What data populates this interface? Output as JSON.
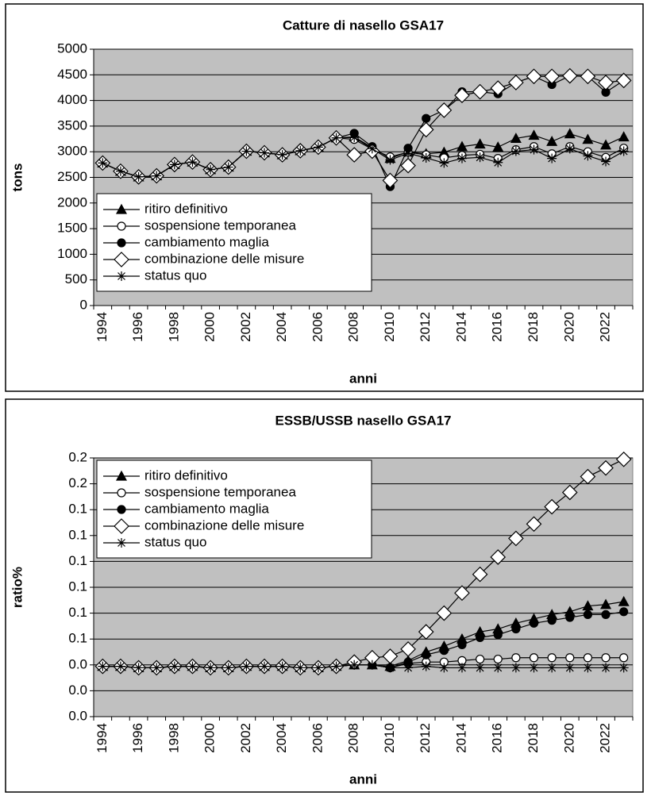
{
  "chart_data": [
    {
      "type": "line",
      "title": "Catture di nasello GSA17",
      "x_label": "anni",
      "y_label": "tons",
      "categories": [
        "1994",
        null,
        "1996",
        null,
        "1998",
        null,
        "2000",
        null,
        "2002",
        null,
        "2004",
        null,
        "2006",
        null,
        "2008",
        null,
        "2010",
        null,
        "2012",
        null,
        "2014",
        null,
        "2016",
        null,
        "2018",
        null,
        "2020",
        null,
        "2022",
        null
      ],
      "ylim": [
        0,
        5000
      ],
      "yticks": [
        0,
        500,
        1000,
        1500,
        2000,
        2500,
        3000,
        3500,
        4000,
        4500,
        5000
      ],
      "grid": true,
      "legend": "lower left",
      "series": [
        {
          "name": "ritiro definitivo",
          "color": "#000000",
          "marker": "triangle",
          "values": [
            2780,
            2620,
            2510,
            2530,
            2750,
            2800,
            2650,
            2700,
            3010,
            2980,
            2940,
            3020,
            3090,
            3270,
            3290,
            3080,
            2870,
            3000,
            2960,
            2990,
            3100,
            3150,
            3090,
            3260,
            3320,
            3200,
            3350,
            3240,
            3130,
            3290
          ]
        },
        {
          "name": "sospensione temporanea",
          "color": "#000000",
          "marker": "circle-open",
          "values": [
            2780,
            2620,
            2510,
            2530,
            2750,
            2800,
            2650,
            2700,
            3010,
            2980,
            2940,
            3020,
            3090,
            3270,
            3240,
            3050,
            2900,
            2990,
            2940,
            2880,
            2930,
            2950,
            2870,
            3040,
            3100,
            2960,
            3100,
            3000,
            2890,
            3070
          ]
        },
        {
          "name": "cambiamento maglia",
          "color": "#000000",
          "marker": "circle",
          "values": [
            2780,
            2620,
            2510,
            2530,
            2750,
            2800,
            2650,
            2700,
            3010,
            2980,
            2940,
            3020,
            3090,
            3270,
            3360,
            3100,
            2320,
            3070,
            3650,
            3810,
            4170,
            4170,
            4130,
            4350,
            4470,
            4310,
            4480,
            4470,
            4160,
            4390
          ]
        },
        {
          "name": "combinazione delle misure",
          "color": "#000000",
          "marker": "diamond-open",
          "values": [
            2780,
            2620,
            2510,
            2530,
            2750,
            2800,
            2650,
            2700,
            3010,
            2980,
            2940,
            3020,
            3090,
            3270,
            2940,
            3010,
            2440,
            2730,
            3430,
            3810,
            4100,
            4170,
            4240,
            4350,
            4470,
            4470,
            4480,
            4470,
            4350,
            4390
          ]
        },
        {
          "name": "status quo",
          "color": "#000000",
          "marker": "star",
          "values": [
            2780,
            2620,
            2510,
            2530,
            2750,
            2800,
            2650,
            2700,
            3010,
            2980,
            2940,
            3020,
            3090,
            3270,
            3280,
            3060,
            2840,
            2970,
            2880,
            2780,
            2870,
            2890,
            2790,
            3010,
            3040,
            2870,
            3060,
            2920,
            2810,
            3010
          ]
        }
      ]
    },
    {
      "type": "line",
      "title": "ESSB/USSB nasello GSA17",
      "x_label": "anni",
      "y_label": "ratio%",
      "categories": [
        "1994",
        null,
        "1996",
        null,
        "1998",
        null,
        "2000",
        null,
        "2002",
        null,
        "2004",
        null,
        "2006",
        null,
        "2008",
        null,
        "2010",
        null,
        "2012",
        null,
        "2014",
        null,
        "2016",
        null,
        "2018",
        null,
        "2020",
        null,
        "2022",
        null
      ],
      "ylim": [
        0,
        0.18
      ],
      "yticks": [
        {
          "value": 0,
          "label": "0.0"
        },
        {
          "value": 0.018,
          "label": "0.0"
        },
        {
          "value": 0.036,
          "label": "0.0"
        },
        {
          "value": 0.054,
          "label": "0.1"
        },
        {
          "value": 0.072,
          "label": "0.1"
        },
        {
          "value": 0.09,
          "label": "0.1"
        },
        {
          "value": 0.108,
          "label": "0.1"
        },
        {
          "value": 0.126,
          "label": "0.1"
        },
        {
          "value": 0.144,
          "label": "0.1"
        },
        {
          "value": 0.162,
          "label": "0.2"
        },
        {
          "value": 0.18,
          "label": "0.2"
        }
      ],
      "grid": true,
      "legend": "upper left",
      "series": [
        {
          "name": "ritiro definitivo",
          "color": "#000000",
          "marker": "triangle",
          "values": [
            0.035,
            0.035,
            0.034,
            0.034,
            0.035,
            0.035,
            0.034,
            0.034,
            0.035,
            0.035,
            0.035,
            0.034,
            0.034,
            0.035,
            0.036,
            0.036,
            0.035,
            0.039,
            0.045,
            0.049,
            0.054,
            0.059,
            0.061,
            0.065,
            0.068,
            0.071,
            0.073,
            0.077,
            0.078,
            0.08
          ]
        },
        {
          "name": "sospensione temporanea",
          "color": "#000000",
          "marker": "circle-open",
          "values": [
            0.035,
            0.035,
            0.034,
            0.034,
            0.035,
            0.035,
            0.034,
            0.034,
            0.035,
            0.035,
            0.035,
            0.034,
            0.034,
            0.035,
            0.036,
            0.036,
            0.034,
            0.037,
            0.038,
            0.038,
            0.039,
            0.04,
            0.04,
            0.041,
            0.041,
            0.041,
            0.041,
            0.041,
            0.041,
            0.041
          ]
        },
        {
          "name": "cambiamento maglia",
          "color": "#000000",
          "marker": "circle",
          "values": [
            0.035,
            0.035,
            0.034,
            0.034,
            0.035,
            0.035,
            0.034,
            0.034,
            0.035,
            0.035,
            0.035,
            0.034,
            0.034,
            0.035,
            0.036,
            0.036,
            0.034,
            0.038,
            0.043,
            0.046,
            0.05,
            0.055,
            0.057,
            0.061,
            0.065,
            0.067,
            0.069,
            0.071,
            0.071,
            0.073
          ]
        },
        {
          "name": "combinazione delle misure",
          "color": "#000000",
          "marker": "diamond-open",
          "values": [
            0.035,
            0.035,
            0.034,
            0.034,
            0.035,
            0.035,
            0.034,
            0.034,
            0.035,
            0.035,
            0.035,
            0.034,
            0.034,
            0.035,
            0.038,
            0.041,
            0.042,
            0.047,
            0.059,
            0.072,
            0.086,
            0.099,
            0.111,
            0.124,
            0.134,
            0.146,
            0.156,
            0.167,
            0.173,
            0.179
          ]
        },
        {
          "name": "status quo",
          "color": "#000000",
          "marker": "star",
          "values": [
            0.035,
            0.035,
            0.034,
            0.034,
            0.035,
            0.035,
            0.034,
            0.034,
            0.035,
            0.035,
            0.035,
            0.034,
            0.034,
            0.035,
            0.036,
            0.036,
            0.034,
            0.034,
            0.035,
            0.034,
            0.034,
            0.034,
            0.034,
            0.034,
            0.034,
            0.034,
            0.034,
            0.034,
            0.034,
            0.034
          ]
        }
      ]
    }
  ]
}
